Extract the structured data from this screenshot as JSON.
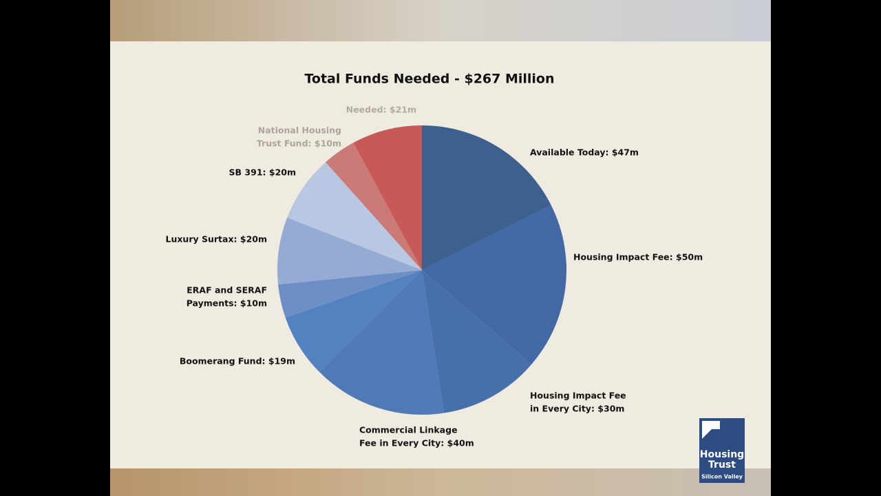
{
  "chart_data": {
    "type": "pie",
    "title": "Total Funds Needed - $267 Million",
    "values": [
      47,
      50,
      30,
      40,
      19,
      10,
      20,
      20,
      10,
      21
    ],
    "value_labels": [
      [
        "Available Today: $47m"
      ],
      [
        "Housing Impact Fee: $50m"
      ],
      [
        "Housing Impact Fee",
        "in Every City: $30m"
      ],
      [
        "Commercial Linkage",
        "Fee in Every City: $40m"
      ],
      [
        "Boomerang Fund: $19m"
      ],
      [
        "ERAF and SERAF",
        "Payments: $10m"
      ],
      [
        "Luxury Surtax: $20m"
      ],
      [
        "SB 391: $20m"
      ],
      [
        "National Housing",
        "Trust Fund: $10m"
      ],
      [
        "Needed: $21m"
      ]
    ],
    "colors": [
      "#34588a",
      "#3862a0",
      "#3d69a8",
      "#4474b3",
      "#4a7cbe",
      "#6689c4",
      "#8ea8d2",
      "#b4c5e2",
      "#c97472",
      "#c4524e"
    ],
    "label_colors": [
      "#111111",
      "#111111",
      "#111111",
      "#111111",
      "#111111",
      "#111111",
      "#111111",
      "#111111",
      "#a9a49c",
      "#b0aba3"
    ]
  },
  "logo": {
    "line1": "Housing",
    "line2": "Trust",
    "line3": "Silicon Valley"
  }
}
